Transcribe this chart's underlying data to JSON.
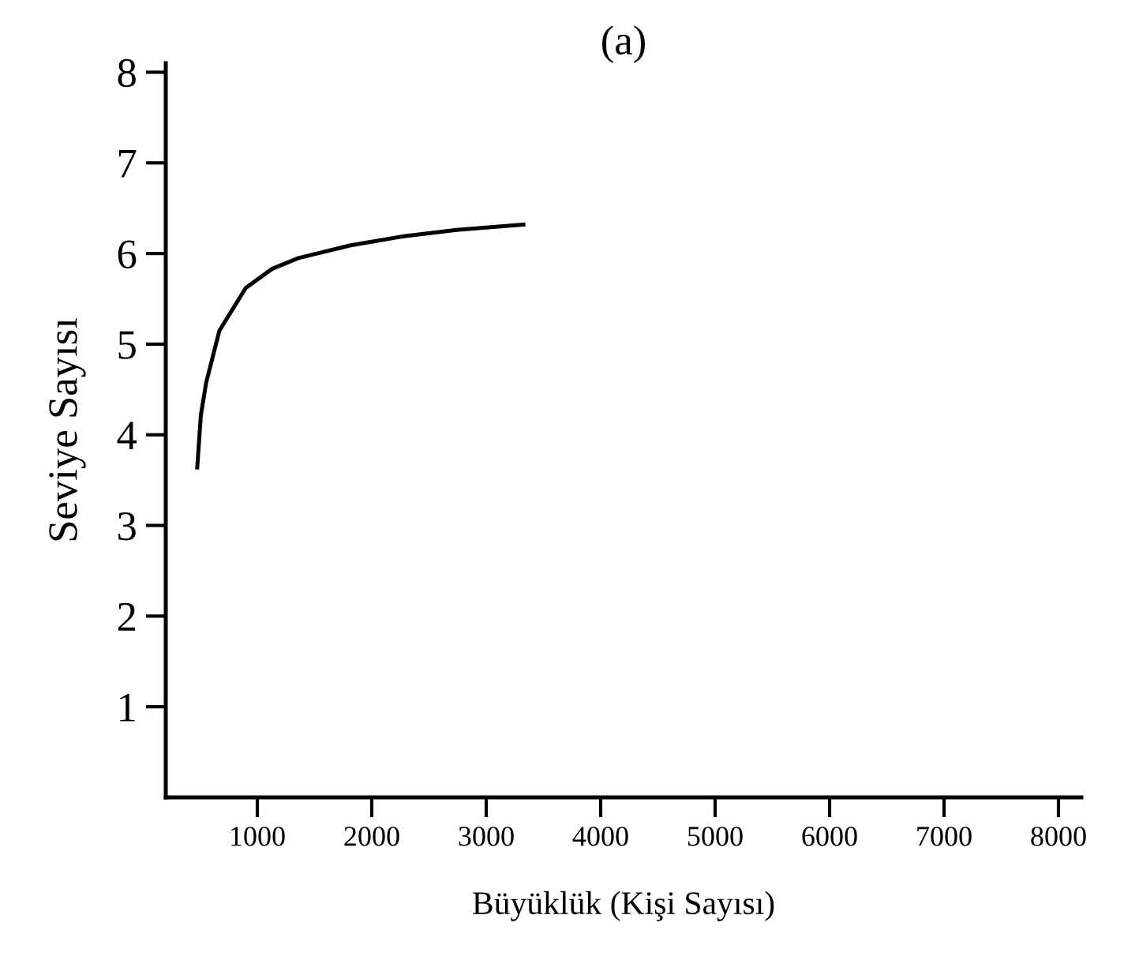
{
  "chart_data": {
    "type": "line",
    "title": "(a)",
    "xlabel": "Büyüklük (Kişi Sayısı)",
    "ylabel": "Seviye Sayısı",
    "series": [
      {
        "color": "#000000",
        "x": [
          475,
          507,
          554,
          669,
          899,
          1128,
          1359,
          1815,
          2280,
          2740,
          3325
        ],
        "values": [
          3.64,
          4.22,
          4.58,
          5.15,
          5.62,
          5.83,
          5.95,
          6.09,
          6.19,
          6.26,
          6.32
        ]
      }
    ],
    "xlim": [
      200,
      8200
    ],
    "xticks": [
      1000,
      2000,
      3000,
      4000,
      5000,
      6000,
      7000,
      8000
    ],
    "ylim": [
      0,
      8.1
    ],
    "yticks": [
      1,
      2,
      3,
      4,
      5,
      6,
      7,
      8
    ],
    "grid": false,
    "legend": false,
    "marker": "none",
    "line_style": "solid"
  }
}
